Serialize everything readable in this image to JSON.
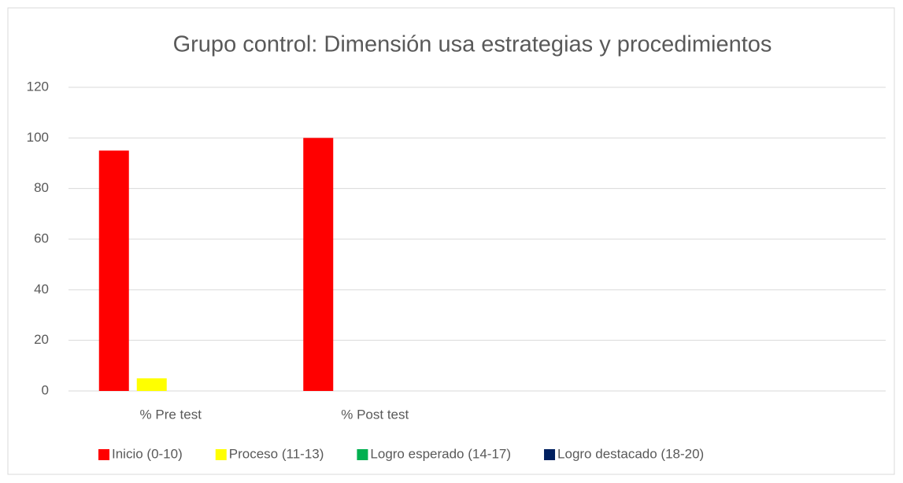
{
  "chart_data": {
    "type": "bar",
    "title": "Grupo control: Dimensión usa estrategias y procedimientos",
    "categories": [
      "% Pre test",
      "% Post test",
      null,
      null
    ],
    "series": [
      {
        "name": "Inicio (0-10)",
        "color": "#ff0000",
        "values": [
          95,
          100,
          null,
          null
        ]
      },
      {
        "name": "Proceso (11-13)",
        "color": "#ffff00",
        "values": [
          5,
          0,
          null,
          null
        ]
      },
      {
        "name": "Logro esperado (14-17)",
        "color": "#00b050",
        "values": [
          0,
          0,
          null,
          null
        ]
      },
      {
        "name": "Logro destacado (18-20)",
        "color": "#002060",
        "values": [
          0,
          0,
          null,
          null
        ]
      }
    ],
    "ylim": [
      0,
      120
    ],
    "yticks": [
      0,
      20,
      40,
      60,
      80,
      100,
      120
    ],
    "grid": true,
    "legend": "bottom"
  }
}
